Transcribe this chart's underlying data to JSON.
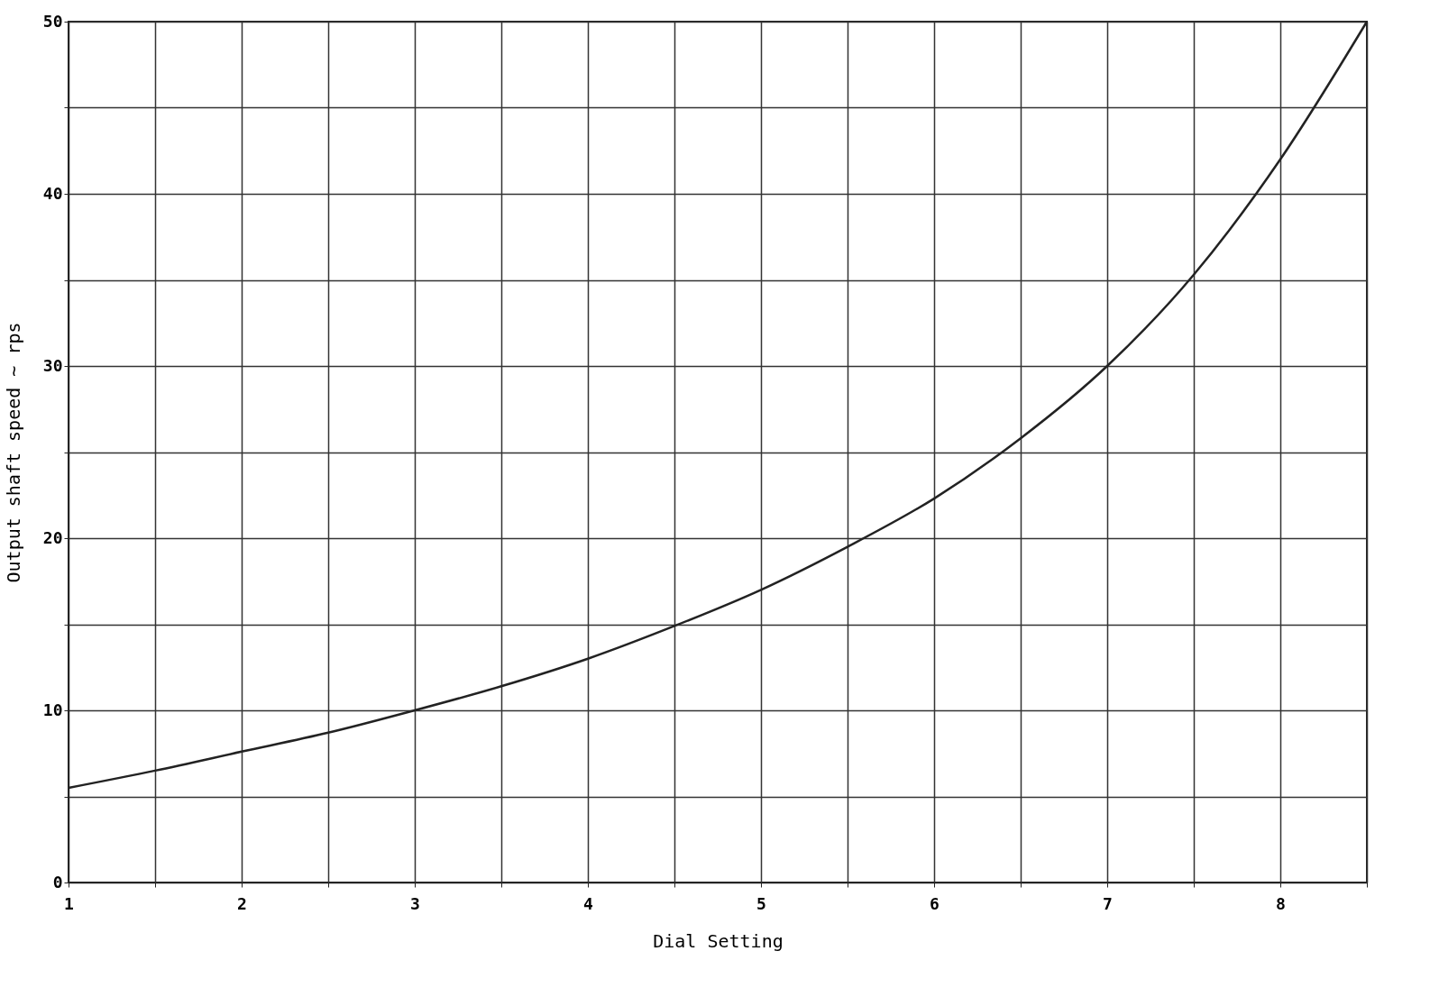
{
  "chart_data": {
    "type": "line",
    "xlabel": "Dial Setting",
    "ylabel": "Output shaft speed ~ rps",
    "x": [
      1,
      1.5,
      2,
      2.5,
      3,
      3.5,
      4,
      4.5,
      5,
      5.5,
      6,
      6.5,
      7,
      7.5,
      8,
      8.5
    ],
    "series": [
      {
        "color": "#222222",
        "values": [
          5.5,
          6.5,
          7.6,
          8.7,
          10,
          11.4,
          13,
          14.9,
          17,
          19.5,
          22.3,
          25.8,
          30,
          35.3,
          42,
          50
        ]
      }
    ],
    "xlim": [
      1,
      8.5
    ],
    "xticks": [
      1,
      {
        "value": 1.5,
        "label": null
      },
      2,
      {
        "value": 2.5,
        "label": null
      },
      3,
      {
        "value": 3.5,
        "label": null
      },
      4,
      {
        "value": 4.5,
        "label": null
      },
      5,
      {
        "value": 5.5,
        "label": null
      },
      6,
      {
        "value": 6.5,
        "label": null
      },
      7,
      {
        "value": 7.5,
        "label": null
      },
      8,
      {
        "value": 8.5,
        "label": null
      }
    ],
    "ylim": [
      0,
      50
    ],
    "yticks": [
      0,
      {
        "value": 5,
        "label": null
      },
      10,
      {
        "value": 15,
        "label": null
      },
      20,
      {
        "value": 25,
        "label": null
      },
      30,
      {
        "value": 35,
        "label": null
      },
      40,
      {
        "value": 45,
        "label": null
      },
      50
    ],
    "grid": true,
    "marker": "none",
    "line_style": "solid"
  }
}
